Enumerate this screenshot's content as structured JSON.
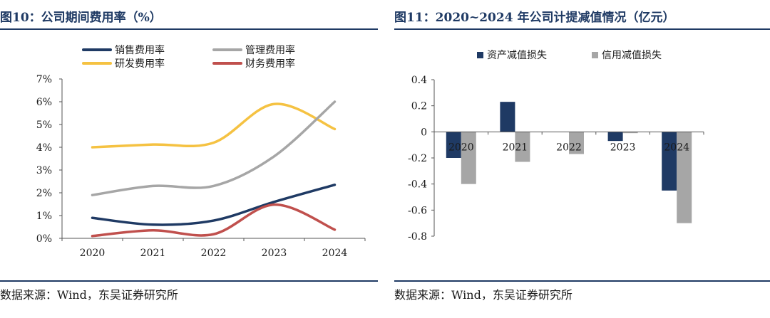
{
  "panels": {
    "left": {
      "title": "图10：公司期间费用率（%）",
      "source": "数据来源：Wind，东吴证券研究所"
    },
    "right": {
      "title": "图11：2020~2024 年公司计提减值情况（亿元）",
      "source": "数据来源：Wind，东吴证券研究所"
    }
  },
  "chart_data": [
    {
      "type": "line",
      "title": "公司期间费用率（%）",
      "categories": [
        "2020",
        "2021",
        "2022",
        "2023",
        "2024"
      ],
      "ylim": [
        0,
        7
      ],
      "yticks": [
        0,
        1,
        2,
        3,
        4,
        5,
        6,
        7
      ],
      "ytick_labels": [
        "0%",
        "1%",
        "2%",
        "3%",
        "4%",
        "5%",
        "6%",
        "7%"
      ],
      "legend_position": "top",
      "series": [
        {
          "name": "销售费用率",
          "color": "#1f3a64",
          "values": [
            0.9,
            0.6,
            0.78,
            1.6,
            2.35
          ]
        },
        {
          "name": "管理费用率",
          "color": "#a6a6a6",
          "values": [
            1.9,
            2.3,
            2.3,
            3.6,
            6.0
          ]
        },
        {
          "name": "研发费用率",
          "color": "#f5c242",
          "values": [
            4.0,
            4.12,
            4.2,
            5.9,
            4.8
          ]
        },
        {
          "name": "财务费用率",
          "color": "#c0504d",
          "values": [
            0.1,
            0.35,
            0.18,
            1.48,
            0.38
          ]
        }
      ]
    },
    {
      "type": "bar",
      "title": "2020~2024 年公司计提减值情况（亿元）",
      "categories": [
        "2020",
        "2021",
        "2022",
        "2023",
        "2024"
      ],
      "ylim": [
        -0.8,
        0.4
      ],
      "yticks": [
        0.4,
        0.2,
        0,
        -0.2,
        -0.4,
        -0.6,
        -0.8
      ],
      "ytick_labels": [
        "0.4",
        "0.2",
        "0",
        "-0.2",
        "-0.4",
        "-0.6",
        "-0.8"
      ],
      "legend_position": "top-left",
      "series": [
        {
          "name": "资产减值损失",
          "color": "#1f3a64",
          "values": [
            -0.2,
            0.23,
            0,
            -0.07,
            -0.45
          ]
        },
        {
          "name": "信用减值损失",
          "color": "#a6a6a6",
          "values": [
            -0.4,
            -0.23,
            -0.17,
            -0.01,
            -0.7
          ]
        }
      ]
    }
  ]
}
